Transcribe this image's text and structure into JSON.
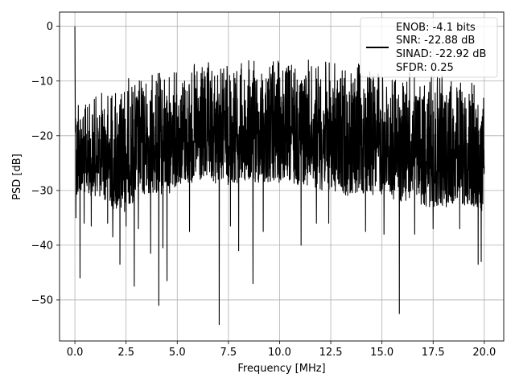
{
  "chart_data": {
    "type": "line",
    "xlabel": "Frequency [MHz]",
    "ylabel": "PSD [dB]",
    "xlim": [
      -0.75,
      20.95
    ],
    "ylim": [
      -57.5,
      2.6
    ],
    "xticks": [
      0.0,
      2.5,
      5.0,
      7.5,
      10.0,
      12.5,
      15.0,
      17.5,
      20.0
    ],
    "xtick_labels": [
      "0.0",
      "2.5",
      "5.0",
      "7.5",
      "10.0",
      "12.5",
      "15.0",
      "17.5",
      "20.0"
    ],
    "yticks": [
      0,
      -10,
      -20,
      -30,
      -40,
      -50
    ],
    "ytick_labels": [
      "0",
      "−10",
      "−20",
      "−30",
      "−40",
      "−50"
    ],
    "grid": true,
    "legend_position": "top-right",
    "series_color": "#000000",
    "legend": {
      "lines": [
        "ENOB: -4.1 bits",
        "SNR: -22.88 dB",
        "SINAD: -22.92 dB",
        "SFDR: 0.25"
      ]
    },
    "series": [
      {
        "x": [
          0.0,
          0.04,
          0.08,
          0.12,
          0.16,
          0.25,
          0.5,
          1.0,
          1.5,
          2.0,
          2.35,
          2.5,
          3.0,
          3.5,
          4.0,
          4.5,
          5.0,
          5.5,
          6.0,
          6.5,
          7.0,
          7.5,
          8.0,
          8.5,
          9.0,
          9.5,
          10.0,
          10.5,
          11.0,
          11.5,
          12.0,
          12.5,
          13.0,
          13.5,
          14.0,
          14.5,
          15.0,
          15.5,
          16.0,
          16.5,
          17.0,
          17.5,
          18.0,
          18.5,
          19.0,
          19.5,
          19.9,
          20.0
        ],
        "envelope_top": [
          0.0,
          -5.0,
          -13.0,
          -10.0,
          -9.5,
          -12.0,
          -14.0,
          -12.5,
          -11.0,
          -10.5,
          -9.5,
          -9.0,
          -9.0,
          -8.5,
          -8.0,
          -8.0,
          -7.5,
          -7.0,
          -6.5,
          -6.5,
          -6.5,
          -6.0,
          -6.0,
          -6.0,
          -6.0,
          -5.5,
          -6.0,
          -6.0,
          -5.5,
          -6.0,
          -6.0,
          -6.0,
          -7.0,
          -7.0,
          -6.5,
          -7.0,
          -8.0,
          -8.5,
          -8.5,
          -8.0,
          -9.0,
          -9.0,
          -8.5,
          -9.0,
          -9.5,
          -10.0,
          -11.0,
          -9.5
        ],
        "envelope_bottom": [
          -15.0,
          -22.0,
          -35.0,
          -33.0,
          -32.0,
          -30.0,
          -31.0,
          -31.0,
          -32.0,
          -34.0,
          -35.0,
          -33.0,
          -32.0,
          -31.0,
          -31.0,
          -31.0,
          -29.0,
          -29.0,
          -29.0,
          -29.0,
          -29.0,
          -29.0,
          -29.0,
          -29.0,
          -29.0,
          -29.0,
          -29.0,
          -29.0,
          -29.0,
          -29.0,
          -30.0,
          -30.0,
          -31.0,
          -31.0,
          -31.0,
          -31.0,
          -31.0,
          -32.0,
          -32.0,
          -32.0,
          -33.0,
          -33.0,
          -33.0,
          -33.0,
          -33.0,
          -33.0,
          -34.0,
          -28.0
        ],
        "deep_dips": [
          {
            "x": 0.05,
            "y": -35.0
          },
          {
            "x": 0.25,
            "y": -46.0
          },
          {
            "x": 0.45,
            "y": -36.0
          },
          {
            "x": 0.8,
            "y": -36.5
          },
          {
            "x": 1.6,
            "y": -36.0
          },
          {
            "x": 1.85,
            "y": -38.5
          },
          {
            "x": 2.2,
            "y": -43.5
          },
          {
            "x": 2.5,
            "y": -36.5
          },
          {
            "x": 2.9,
            "y": -47.5
          },
          {
            "x": 3.1,
            "y": -37.0
          },
          {
            "x": 3.7,
            "y": -41.5
          },
          {
            "x": 4.1,
            "y": -51.0
          },
          {
            "x": 4.3,
            "y": -40.5
          },
          {
            "x": 4.5,
            "y": -46.5
          },
          {
            "x": 5.6,
            "y": -37.5
          },
          {
            "x": 7.05,
            "y": -54.5
          },
          {
            "x": 7.6,
            "y": -36.5
          },
          {
            "x": 8.0,
            "y": -41.0
          },
          {
            "x": 8.7,
            "y": -47.0
          },
          {
            "x": 9.2,
            "y": -37.5
          },
          {
            "x": 11.05,
            "y": -40.0
          },
          {
            "x": 11.8,
            "y": -36.0
          },
          {
            "x": 12.4,
            "y": -36.0
          },
          {
            "x": 14.2,
            "y": -37.5
          },
          {
            "x": 15.1,
            "y": -38.0
          },
          {
            "x": 15.85,
            "y": -52.5
          },
          {
            "x": 16.6,
            "y": -38.0
          },
          {
            "x": 17.5,
            "y": -37.0
          },
          {
            "x": 18.8,
            "y": -37.0
          },
          {
            "x": 19.7,
            "y": -43.5
          },
          {
            "x": 19.85,
            "y": -43.0
          }
        ]
      }
    ]
  }
}
